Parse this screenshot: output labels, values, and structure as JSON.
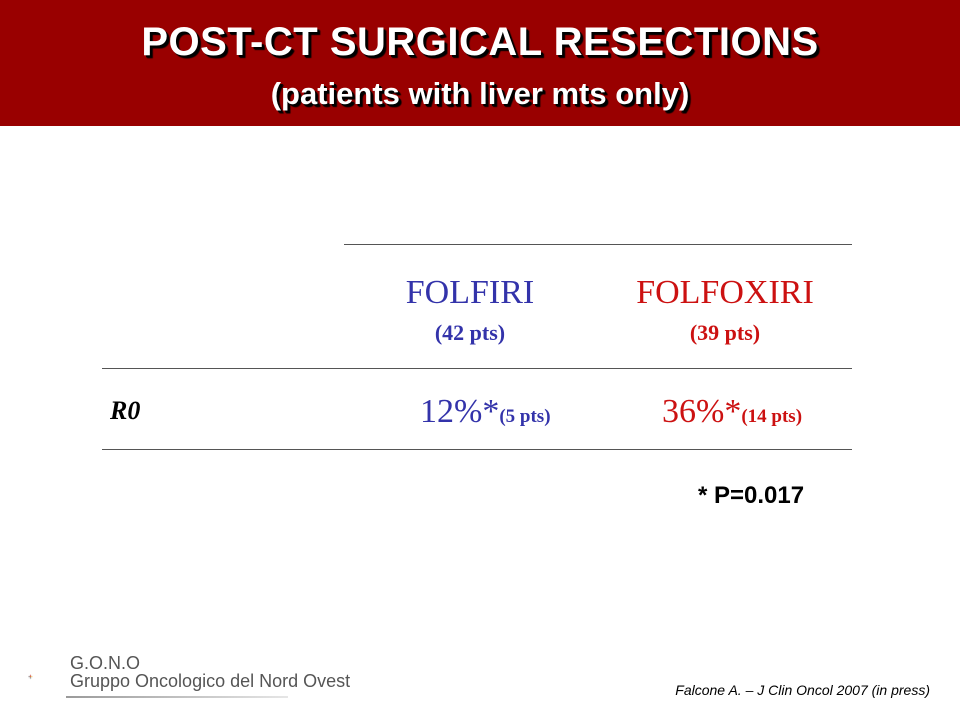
{
  "header": {
    "title": "POST-CT SURGICAL RESECTIONS",
    "subtitle": "(patients with liver mts only)",
    "background_color": "#990000"
  },
  "table": {
    "columns": [
      {
        "name": "FOLFIRI",
        "patients": "(42 pts)",
        "color": "#3333aa"
      },
      {
        "name": "FOLFOXIRI",
        "patients": "(39 pts)",
        "color": "#cc1111"
      }
    ],
    "rows": [
      {
        "label": "R0",
        "cells": [
          {
            "value": "12%*",
            "detail": "(5 pts)"
          },
          {
            "value": "36%*",
            "detail": "(14 pts)"
          }
        ]
      }
    ],
    "footnote": "* P=0.017"
  },
  "logo": {
    "icon": "compass-star-icon",
    "line1": "G.O.N.O",
    "line2": "Gruppo Oncologico del Nord Ovest"
  },
  "citation": "Falcone A. – J Clin Oncol 2007 (in press)"
}
